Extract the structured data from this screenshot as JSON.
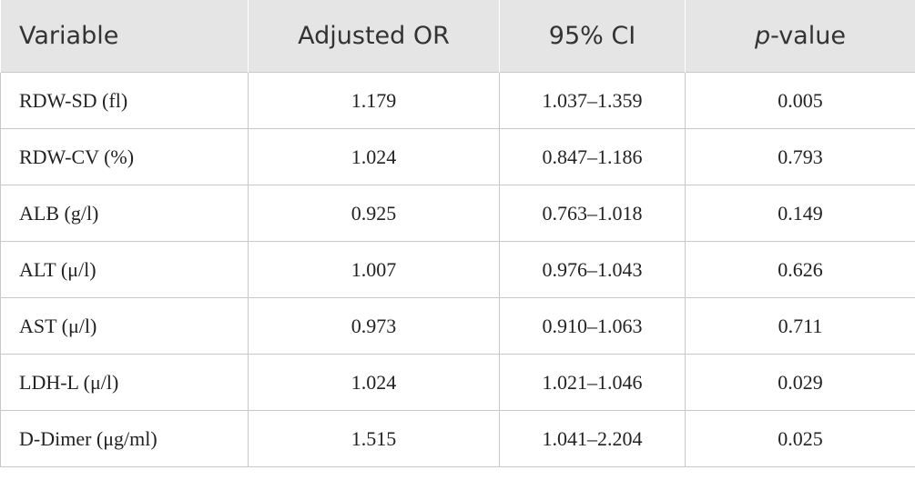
{
  "table": {
    "header": [
      "Variable",
      "Adjusted OR",
      "95% CI",
      "p-value"
    ],
    "rows": [
      [
        "RDW-SD (fl)",
        "1.179",
        "1.037–1.359",
        "0.005"
      ],
      [
        "RDW-CV (%)",
        "1.024",
        "0.847–1.186",
        "0.793"
      ],
      [
        "ALB (g/l)",
        "0.925",
        "0.763–1.018",
        "0.149"
      ],
      [
        "ALT (μ/l)",
        "1.007",
        "0.976–1.043",
        "0.626"
      ],
      [
        "AST (μ/l)",
        "0.973",
        "0.910–1.063",
        "0.711"
      ],
      [
        "LDH-L (μ/l)",
        "1.024",
        "1.021–1.046",
        "0.029"
      ],
      [
        "D-Dimer (μg/ml)",
        "1.515",
        "1.041–2.204",
        "0.025"
      ]
    ]
  }
}
